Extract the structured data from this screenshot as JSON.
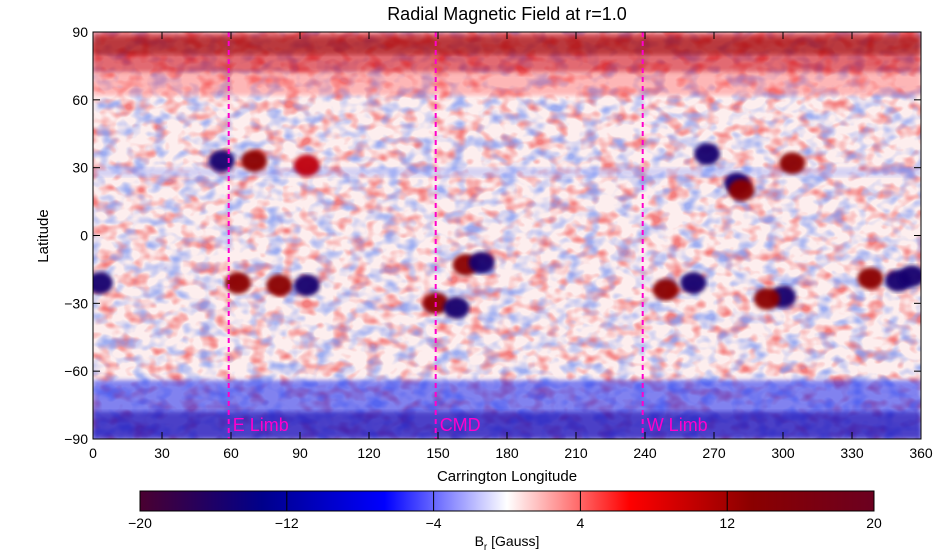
{
  "chart_data": {
    "type": "heatmap",
    "title": "Radial Magnetic Field at r=1.0",
    "xlabel": "Carrington Longitude",
    "ylabel": "Latitude",
    "xlim": [
      0,
      360
    ],
    "ylim": [
      -90,
      90
    ],
    "xticks": [
      "0",
      "30",
      "60",
      "90",
      "120",
      "150",
      "180",
      "210",
      "240",
      "270",
      "300",
      "330",
      "360"
    ],
    "yticks": [
      "90",
      "60",
      "30",
      "0",
      "−30",
      "−60",
      "−90"
    ],
    "colorbar": {
      "label_main": "B",
      "label_sub": "r",
      "label_unit": " [Gauss]",
      "range": [
        -20,
        20
      ],
      "ticks": [
        "−20",
        "−12",
        "−4",
        "4",
        "12",
        "20"
      ],
      "colors": [
        "#4a0030",
        "#00008b",
        "#0000ff",
        "#ffffff",
        "#ff0000",
        "#8b0000",
        "#6b0020"
      ]
    },
    "markers": [
      {
        "longitude": 59,
        "label": "E Limb"
      },
      {
        "longitude": 149,
        "label": "CMD"
      },
      {
        "longitude": 239,
        "label": "W Limb"
      }
    ],
    "marker_color": "#ff00cc",
    "regions": [
      {
        "lon": 70,
        "lat": 33,
        "b": 16
      },
      {
        "lon": 56,
        "lat": 33,
        "b": -20
      },
      {
        "lon": 93,
        "lat": 31,
        "b": 14
      },
      {
        "lon": 63,
        "lat": -21,
        "b": 18
      },
      {
        "lon": 81,
        "lat": -22,
        "b": 20
      },
      {
        "lon": 93,
        "lat": -22,
        "b": -20
      },
      {
        "lon": 3,
        "lat": -21,
        "b": -18
      },
      {
        "lon": 162,
        "lat": -13,
        "b": 16
      },
      {
        "lon": 169,
        "lat": -12,
        "b": -20
      },
      {
        "lon": 149,
        "lat": -30,
        "b": 16
      },
      {
        "lon": 158,
        "lat": -32,
        "b": -20
      },
      {
        "lon": 249,
        "lat": -24,
        "b": 20
      },
      {
        "lon": 261,
        "lat": -21,
        "b": -20
      },
      {
        "lon": 267,
        "lat": 36,
        "b": -20
      },
      {
        "lon": 280,
        "lat": 23,
        "b": -20
      },
      {
        "lon": 282,
        "lat": 20,
        "b": 16
      },
      {
        "lon": 304,
        "lat": 32,
        "b": 18
      },
      {
        "lon": 300,
        "lat": -27,
        "b": -20
      },
      {
        "lon": 293,
        "lat": -28,
        "b": 16
      },
      {
        "lon": 338,
        "lat": -19,
        "b": 20
      },
      {
        "lon": 350,
        "lat": -20,
        "b": -20
      },
      {
        "lon": 356,
        "lat": -18,
        "b": -18
      }
    ]
  }
}
